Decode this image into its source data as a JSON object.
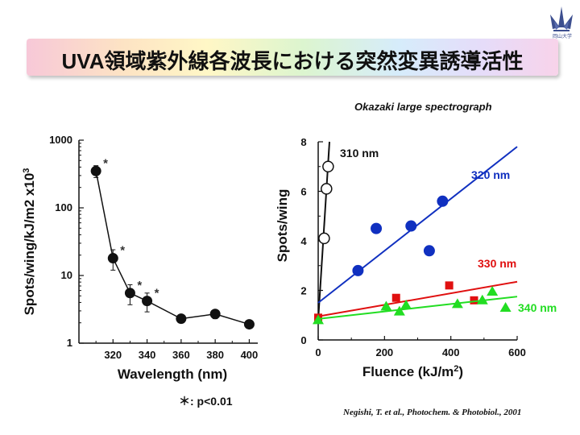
{
  "title": "UVA領域紫外線各波長における突然変異誘導活性",
  "source_label": "Okazaki large spectrograph",
  "citation": "Negishi, T. et al., Photochem. & Photobiol., 2001",
  "significance_note": "＊: p<0.01",
  "logo_caption": "岡山大学",
  "colors": {
    "blue": "#1030c0",
    "red": "#e01010",
    "green": "#22dd22",
    "black": "#111111"
  },
  "chart_data": [
    {
      "type": "line",
      "scale": "log-y",
      "xlabel": "Wavelength (nm)",
      "ylabel": "Spots/wing/kJ/m2",
      "ylabel_multiplier": "x10",
      "ylabel_multiplier_exp": "3",
      "xlim": [
        300,
        405
      ],
      "ylim": [
        1,
        1000
      ],
      "x_ticks": [
        "320",
        "340",
        "360",
        "380",
        "400"
      ],
      "y_ticks": [
        "1000",
        "100",
        "10",
        "1"
      ],
      "x": [
        310,
        320,
        330,
        340,
        360,
        380,
        400
      ],
      "y": [
        350,
        18,
        5.5,
        4.2,
        2.3,
        2.7,
        1.9
      ],
      "error": [
        70,
        6,
        1.8,
        1.3,
        0.2,
        0.4,
        0.2
      ],
      "significant": [
        true,
        true,
        true,
        true,
        false,
        false,
        false
      ],
      "significance_mark": "*"
    },
    {
      "type": "scatter",
      "xlabel": "Fluence (kJ/m",
      "xlabel_superscript": "2",
      "xlabel_suffix": ")",
      "ylabel": "Spots/wing",
      "xlim": [
        0,
        600
      ],
      "ylim": [
        0,
        8
      ],
      "x_ticks": [
        "0",
        "200",
        "400",
        "600"
      ],
      "y_ticks": [
        "0",
        "2",
        "4",
        "6",
        "8"
      ],
      "series": [
        {
          "name": "310 nm",
          "color": "#111111",
          "marker": "open-circle",
          "x": [
            18,
            25,
            30
          ],
          "y": [
            4.1,
            6.1,
            7.0
          ],
          "fit": [
            [
              0,
              0.8
            ],
            [
              34,
              8.0
            ]
          ]
        },
        {
          "name": "320 nm",
          "color": "#1030c0",
          "marker": "circle",
          "x": [
            120,
            175,
            280,
            335,
            375
          ],
          "y": [
            2.8,
            4.5,
            4.6,
            3.6,
            5.6
          ],
          "fit": [
            [
              0,
              1.5
            ],
            [
              600,
              7.8
            ]
          ]
        },
        {
          "name": "330 nm",
          "color": "#e01010",
          "marker": "square",
          "x": [
            0,
            235,
            395,
            470
          ],
          "y": [
            0.9,
            1.7,
            2.2,
            1.6
          ],
          "fit": [
            [
              0,
              0.95
            ],
            [
              600,
              2.35
            ]
          ]
        },
        {
          "name": "340 nm",
          "color": "#22dd22",
          "marker": "triangle",
          "x": [
            0,
            205,
            245,
            265,
            420,
            495,
            525,
            565
          ],
          "y": [
            0.8,
            1.35,
            1.15,
            1.4,
            1.45,
            1.6,
            1.95,
            1.3
          ],
          "fit": [
            [
              0,
              0.85
            ],
            [
              600,
              1.75
            ]
          ]
        }
      ]
    }
  ]
}
